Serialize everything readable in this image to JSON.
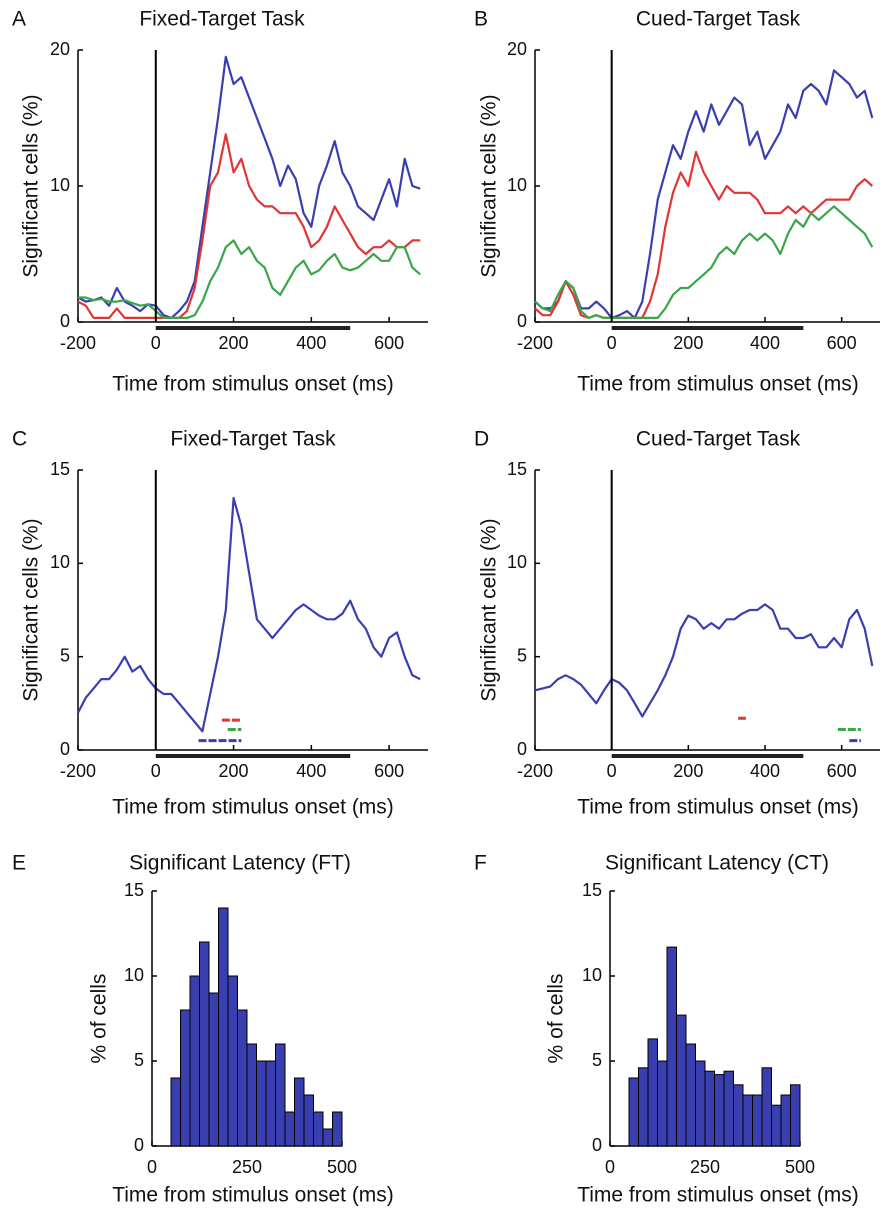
{
  "chart_data": [
    {
      "type": "line",
      "panel": "A",
      "title": "Fixed-Target Task",
      "xlabel": "Time from stimulus onset (ms)",
      "ylabel": "Significant cells (%)",
      "x": [
        -200,
        -180,
        -160,
        -140,
        -120,
        -100,
        -80,
        -60,
        -40,
        -20,
        0,
        20,
        40,
        60,
        80,
        100,
        120,
        140,
        160,
        180,
        200,
        220,
        240,
        260,
        280,
        300,
        320,
        340,
        360,
        380,
        400,
        420,
        440,
        460,
        480,
        500,
        520,
        540,
        560,
        580,
        600,
        620,
        640,
        660,
        680
      ],
      "series": [
        {
          "color": "#3a3fb0",
          "values": [
            1.8,
            1.5,
            1.6,
            1.8,
            1.2,
            2.5,
            1.5,
            1.2,
            0.8,
            1.3,
            1.2,
            0.5,
            0.3,
            0.8,
            1.5,
            3,
            7,
            11,
            15,
            19.5,
            17.5,
            18,
            16.5,
            15,
            13.5,
            12,
            10,
            11.5,
            10.5,
            8,
            7,
            10,
            11.5,
            13.3,
            11,
            10,
            8.5,
            8,
            7.5,
            9,
            10.5,
            8.5,
            12,
            10,
            9.8
          ]
        },
        {
          "color": "#e03535",
          "values": [
            1.5,
            1.2,
            0.3,
            0.3,
            0.3,
            1.0,
            0.3,
            0.3,
            0.3,
            0.3,
            0.3,
            0.3,
            0.3,
            0.3,
            0.8,
            2.5,
            6,
            10,
            11,
            13.8,
            11,
            12,
            10,
            9,
            8.5,
            8.5,
            8,
            8,
            8,
            7,
            5.5,
            6,
            7,
            8.5,
            7.5,
            6.5,
            5.5,
            5,
            5.5,
            5.5,
            6,
            5.5,
            5.5,
            6,
            6
          ]
        },
        {
          "color": "#3aa64a",
          "values": [
            1.8,
            1.8,
            1.6,
            1.7,
            1.5,
            1.5,
            1.6,
            1.4,
            1.2,
            1.3,
            0.8,
            0.3,
            0.3,
            0.3,
            0.3,
            0.5,
            1.5,
            3,
            4,
            5.5,
            6,
            5,
            5.5,
            4.5,
            4,
            2.5,
            2,
            3,
            4,
            4.5,
            3.5,
            3.8,
            4.5,
            5,
            4,
            3.8,
            4,
            4.5,
            5,
            4.5,
            4.5,
            5.5,
            5.5,
            4,
            3.5
          ]
        }
      ],
      "onset": 0,
      "stimulus_period": [
        0,
        500
      ],
      "xlim": [
        -200,
        700
      ],
      "xticks": [
        -200,
        0,
        200,
        400,
        600
      ],
      "ylim": [
        0,
        20
      ],
      "yticks": [
        0,
        10,
        20
      ]
    },
    {
      "type": "line",
      "panel": "B",
      "title": "Cued-Target Task",
      "xlabel": "Time from stimulus onset (ms)",
      "ylabel": "Significant cells (%)",
      "x": [
        -200,
        -180,
        -160,
        -140,
        -120,
        -100,
        -80,
        -60,
        -40,
        -20,
        0,
        20,
        40,
        60,
        80,
        100,
        120,
        140,
        160,
        180,
        200,
        220,
        240,
        260,
        280,
        300,
        320,
        340,
        360,
        380,
        400,
        420,
        440,
        460,
        480,
        500,
        520,
        540,
        560,
        580,
        600,
        620,
        640,
        660,
        680
      ],
      "series": [
        {
          "color": "#3a3fb0",
          "values": [
            1.5,
            1,
            1,
            1.5,
            3,
            2.5,
            1,
            1,
            1.5,
            1,
            0.3,
            0.5,
            0.8,
            0.3,
            1.5,
            5,
            9,
            11,
            13,
            12,
            14,
            15.5,
            14,
            16,
            14.5,
            15.5,
            16.5,
            16,
            13,
            14,
            12,
            13,
            14,
            16,
            15,
            17,
            17.5,
            17,
            16,
            18.5,
            18,
            17.5,
            16.5,
            17,
            15
          ]
        },
        {
          "color": "#e03535",
          "values": [
            1,
            0.5,
            0.5,
            1.5,
            3,
            2,
            0.5,
            0.3,
            0.5,
            0.3,
            0.3,
            0.3,
            0.3,
            0.3,
            0.3,
            1.5,
            3.5,
            7,
            9.5,
            11,
            10,
            12.5,
            11,
            10,
            9,
            10,
            9.5,
            9.5,
            9.5,
            9,
            8,
            8,
            8,
            8.5,
            8,
            8.5,
            8,
            8.5,
            9,
            9,
            9,
            9,
            10,
            10.5,
            10
          ]
        },
        {
          "color": "#3aa64a",
          "values": [
            1.5,
            1,
            0.8,
            2,
            3,
            2.5,
            0.8,
            0.3,
            0.5,
            0.3,
            0.3,
            0.3,
            0.3,
            0.3,
            0.3,
            0.3,
            0.3,
            1,
            2,
            2.5,
            2.5,
            3,
            3.5,
            4,
            5,
            5.5,
            5,
            6,
            6.5,
            6,
            6.5,
            6,
            5,
            6.5,
            7.5,
            7,
            8,
            7.5,
            8,
            8.5,
            8,
            7.5,
            7,
            6.5,
            5.5
          ]
        }
      ],
      "onset": 0,
      "stimulus_period": [
        0,
        500
      ],
      "xlim": [
        -200,
        700
      ],
      "xticks": [
        -200,
        0,
        200,
        400,
        600
      ],
      "ylim": [
        0,
        20
      ],
      "yticks": [
        0,
        10,
        20
      ]
    },
    {
      "type": "line",
      "panel": "C",
      "title": "Fixed-Target Task",
      "xlabel": "Time from stimulus onset (ms)",
      "ylabel": "Significant cells (%)",
      "x": [
        -200,
        -180,
        -160,
        -140,
        -120,
        -100,
        -80,
        -60,
        -40,
        -20,
        0,
        20,
        40,
        60,
        80,
        100,
        120,
        140,
        160,
        180,
        200,
        220,
        240,
        260,
        280,
        300,
        320,
        340,
        360,
        380,
        400,
        420,
        440,
        460,
        480,
        500,
        520,
        540,
        560,
        580,
        600,
        620,
        640,
        660,
        680
      ],
      "series": [
        {
          "color": "#3a3fb0",
          "values": [
            2,
            2.8,
            3.3,
            3.8,
            3.8,
            4.3,
            5,
            4.2,
            4.5,
            3.8,
            3.3,
            3,
            3,
            2.5,
            2,
            1.5,
            1,
            3,
            5,
            7.5,
            13.5,
            12,
            9.5,
            7,
            6.5,
            6,
            6.5,
            7,
            7.5,
            7.8,
            7.5,
            7.2,
            7,
            7,
            7.3,
            8,
            7,
            6.5,
            5.5,
            5,
            6,
            6.3,
            5,
            4,
            3.8
          ]
        }
      ],
      "significance": [
        {
          "color": "#e03535",
          "x": [
            170,
            220
          ],
          "y": 1.6
        },
        {
          "color": "#3aa64a",
          "x": [
            185,
            220
          ],
          "y": 1.1
        },
        {
          "color": "#3a3fb0",
          "x": [
            110,
            220
          ],
          "y": 0.5
        }
      ],
      "onset": 0,
      "stimulus_period": [
        0,
        500
      ],
      "xlim": [
        -200,
        700
      ],
      "xticks": [
        -200,
        0,
        200,
        400,
        600
      ],
      "ylim": [
        0,
        15
      ],
      "yticks": [
        0,
        5,
        10,
        15
      ]
    },
    {
      "type": "line",
      "panel": "D",
      "title": "Cued-Target Task",
      "xlabel": "Time from stimulus onset (ms)",
      "ylabel": "Significant cells (%)",
      "x": [
        -200,
        -180,
        -160,
        -140,
        -120,
        -100,
        -80,
        -60,
        -40,
        -20,
        0,
        20,
        40,
        60,
        80,
        100,
        120,
        140,
        160,
        180,
        200,
        220,
        240,
        260,
        280,
        300,
        320,
        340,
        360,
        380,
        400,
        420,
        440,
        460,
        480,
        500,
        520,
        540,
        560,
        580,
        600,
        620,
        640,
        660,
        680
      ],
      "series": [
        {
          "color": "#3a3fb0",
          "values": [
            3.2,
            3.3,
            3.4,
            3.8,
            4.0,
            3.8,
            3.5,
            3.0,
            2.5,
            3.2,
            3.8,
            3.6,
            3.2,
            2.5,
            1.8,
            2.5,
            3.2,
            4,
            5,
            6.5,
            7.2,
            7,
            6.5,
            6.8,
            6.5,
            7,
            7,
            7.3,
            7.5,
            7.5,
            7.8,
            7.5,
            6.5,
            6.5,
            6,
            6,
            6.2,
            5.5,
            5.5,
            6,
            5.5,
            7,
            7.5,
            6.5,
            4.5
          ]
        }
      ],
      "significance": [
        {
          "color": "#e03535",
          "x": [
            330,
            350
          ],
          "y": 1.7
        },
        {
          "color": "#3aa64a",
          "x": [
            590,
            650
          ],
          "y": 1.1
        },
        {
          "color": "#3a3fb0",
          "x": [
            620,
            650
          ],
          "y": 0.5
        }
      ],
      "onset": 0,
      "stimulus_period": [
        0,
        500
      ],
      "xlim": [
        -200,
        700
      ],
      "xticks": [
        -200,
        0,
        200,
        400,
        600
      ],
      "ylim": [
        0,
        15
      ],
      "yticks": [
        0,
        5,
        10,
        15
      ]
    },
    {
      "type": "histogram",
      "panel": "E",
      "title": "Significant Latency (FT)",
      "xlabel": "Time from stimulus onset (ms)",
      "ylabel": "% of cells",
      "color": "#3a3fb0",
      "bins": [
        0,
        25,
        50,
        75,
        100,
        125,
        150,
        175,
        200,
        225,
        250,
        275,
        300,
        325,
        350,
        375,
        400,
        425,
        450,
        475,
        500
      ],
      "counts": [
        0,
        0,
        4,
        8,
        10,
        12,
        9,
        14,
        10,
        8,
        6,
        5,
        5,
        6,
        2,
        4,
        3,
        2,
        1,
        2
      ],
      "xlim": [
        0,
        500
      ],
      "xticks": [
        0,
        250,
        500
      ],
      "ylim": [
        0,
        15
      ],
      "yticks": [
        0,
        5,
        10,
        15
      ]
    },
    {
      "type": "histogram",
      "panel": "F",
      "title": "Significant Latency (CT)",
      "xlabel": "Time from stimulus onset (ms)",
      "ylabel": "% of cells",
      "color": "#3a3fb0",
      "bins": [
        0,
        25,
        50,
        75,
        100,
        125,
        150,
        175,
        200,
        225,
        250,
        275,
        300,
        325,
        350,
        375,
        400,
        425,
        450,
        475,
        500
      ],
      "counts": [
        0,
        0,
        4,
        4.6,
        6.3,
        5,
        11.7,
        7.7,
        6,
        5,
        4.4,
        4.2,
        4.4,
        3.6,
        3,
        3,
        4.6,
        2.4,
        3,
        3.6
      ],
      "xlim": [
        0,
        500
      ],
      "xticks": [
        0,
        250,
        500
      ],
      "ylim": [
        0,
        15
      ],
      "yticks": [
        0,
        5,
        10,
        15
      ]
    }
  ]
}
